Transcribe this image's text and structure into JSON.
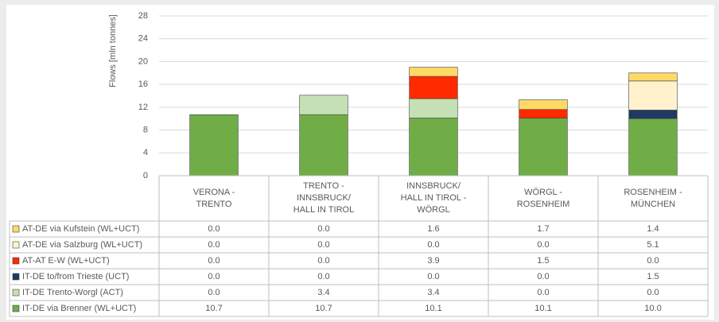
{
  "chart_data": {
    "type": "bar",
    "stacked": true,
    "y_label": "Flows [mln tonnes]",
    "categories": [
      "VERONA -\nTRENTO",
      "TRENTO -\nINNSBRUCK/\nHALL IN TIROL",
      "INNSBRUCK/\nHALL IN TIROL -\nWÖRGL",
      "WÖRGL  -\nROSENHEIM",
      "ROSENHEIM -\nMÜNCHEN"
    ],
    "ylim": [
      0,
      28
    ],
    "yticks": [
      0,
      4,
      8,
      12,
      16,
      20,
      24,
      28
    ],
    "grid": true,
    "series": [
      {
        "name": "IT-DE via Brenner (WL+UCT)",
        "color": "#70ad47",
        "values": [
          10.7,
          10.7,
          10.1,
          10.1,
          10.0
        ],
        "value_labels": [
          "10.7",
          "10.7",
          "10.1",
          "10.1",
          "10.0"
        ]
      },
      {
        "name": "IT-DE Trento-Worgl (ACT)",
        "color": "#c5e0b4",
        "values": [
          0,
          3.4,
          3.4,
          0,
          0
        ],
        "value_labels": [
          "0.0",
          "3.4",
          "3.4",
          "0.0",
          "0.0"
        ]
      },
      {
        "name": "IT-DE to/from Trieste (UCT)",
        "color": "#1f3864",
        "values": [
          0,
          0,
          0,
          0,
          1.5
        ],
        "value_labels": [
          "0.0",
          "0.0",
          "0.0",
          "0.0",
          "1.5"
        ]
      },
      {
        "name": "AT-AT E-W (WL+UCT)",
        "color": "#ff2a00",
        "values": [
          0,
          0,
          3.9,
          1.5,
          0
        ],
        "value_labels": [
          "0.0",
          "0.0",
          "3.9",
          "1.5",
          "0.0"
        ]
      },
      {
        "name": "AT-DE via Salzburg (WL+UCT)",
        "color": "#fff2cc",
        "values": [
          0,
          0,
          0,
          0,
          5.1
        ],
        "value_labels": [
          "0.0",
          "0.0",
          "0.0",
          "0.0",
          "5.1"
        ]
      },
      {
        "name": "AT-DE via Kufstein (WL+UCT)",
        "color": "#ffd966",
        "values": [
          0,
          0,
          1.6,
          1.7,
          1.4
        ],
        "value_labels": [
          "0.0",
          "0.0",
          "1.6",
          "1.7",
          "1.4"
        ]
      }
    ]
  }
}
